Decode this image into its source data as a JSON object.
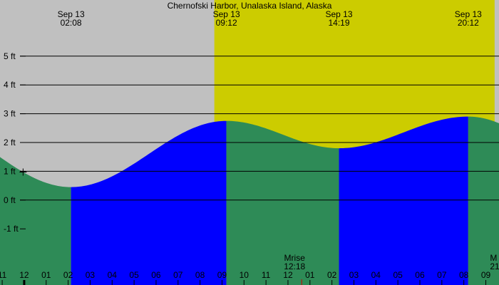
{
  "chart_data": {
    "type": "area",
    "title": "Chernofski Harbor, Unalaska Island, Alaska",
    "ylim": [
      -2.95,
      6.95
    ],
    "y_ticks": [
      {
        "value": 5,
        "label": "5 ft"
      },
      {
        "value": 4,
        "label": "4 ft"
      },
      {
        "value": 3,
        "label": "3 ft"
      },
      {
        "value": 2,
        "label": "2 ft"
      },
      {
        "value": 1,
        "label": "1 ft"
      },
      {
        "value": 0,
        "label": "0 ft"
      },
      {
        "value": -1,
        "label": "-1 ft"
      }
    ],
    "x_hour_range": [
      -1.1,
      21.6
    ],
    "x_ticks": [
      {
        "hour": -1,
        "label": "11"
      },
      {
        "hour": 0,
        "label": "12"
      },
      {
        "hour": 1,
        "label": "01"
      },
      {
        "hour": 2,
        "label": "02"
      },
      {
        "hour": 3,
        "label": "03"
      },
      {
        "hour": 4,
        "label": "04"
      },
      {
        "hour": 5,
        "label": "05"
      },
      {
        "hour": 6,
        "label": "06"
      },
      {
        "hour": 7,
        "label": "07"
      },
      {
        "hour": 8,
        "label": "08"
      },
      {
        "hour": 9,
        "label": "09"
      },
      {
        "hour": 10,
        "label": "10"
      },
      {
        "hour": 11,
        "label": "11"
      },
      {
        "hour": 12,
        "label": "12"
      },
      {
        "hour": 13,
        "label": "01"
      },
      {
        "hour": 14,
        "label": "02"
      },
      {
        "hour": 15,
        "label": "03"
      },
      {
        "hour": 16,
        "label": "04"
      },
      {
        "hour": 17,
        "label": "05"
      },
      {
        "hour": 18,
        "label": "06"
      },
      {
        "hour": 19,
        "label": "07"
      },
      {
        "hour": 20,
        "label": "08"
      },
      {
        "hour": 21,
        "label": "09"
      }
    ],
    "tides": [
      {
        "hour": -5.0,
        "height": 2.9,
        "label": ""
      },
      {
        "hour": 2.13,
        "height": 0.45,
        "date": "Sep 13",
        "time": "02:08"
      },
      {
        "hour": 9.2,
        "height": 2.75,
        "date": "Sep 13",
        "time": "09:12"
      },
      {
        "hour": 14.32,
        "height": 1.8,
        "date": "Sep 13",
        "time": "14:19"
      },
      {
        "hour": 20.2,
        "height": 2.9,
        "date": "Sep 13",
        "time": "20:12"
      },
      {
        "hour": 27.0,
        "height": 0.6,
        "label": ""
      }
    ],
    "daylight": {
      "start_hour": 8.65,
      "end_hour": 21.4
    },
    "moon_events": [
      {
        "name": "Mrise",
        "time": "12:18",
        "hour": 12.3
      },
      {
        "name": "M",
        "time": "21",
        "hour": 21.45
      }
    ],
    "now_marker_hour": -0.05,
    "colors": {
      "night": "#c0c0c0",
      "day": "#cccc00",
      "rising": "#0000ff",
      "falling": "#2e8b57",
      "grid": "#000000",
      "moon_tick": "#cc0000"
    }
  }
}
